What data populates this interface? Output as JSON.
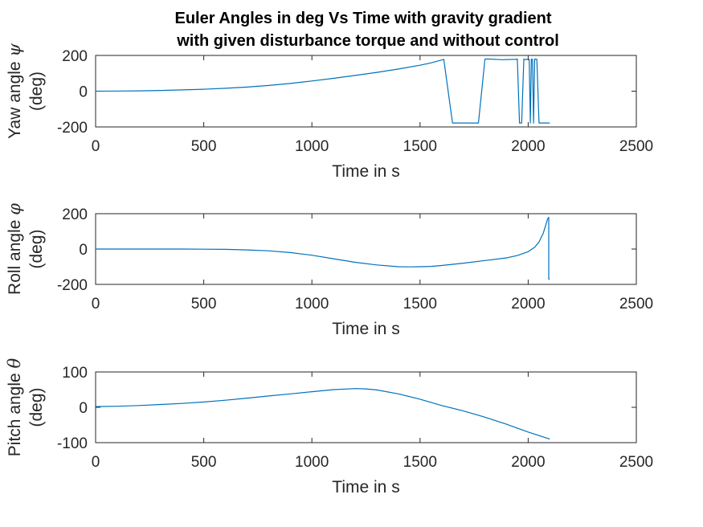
{
  "figure": {
    "title_line1": "Euler Angles in deg Vs Time with gravity gradient",
    "title_line2": "with given disturbance torque and without control"
  },
  "colors": {
    "series": "#0072BD",
    "axes": "#262626"
  },
  "chart_data": [
    {
      "type": "line",
      "xlabel": "Time in s",
      "ylabel_line1": "Yaw angle ",
      "ylabel_symbol": "ψ",
      "ylabel_line2": "(deg)",
      "xlim": [
        0,
        2500
      ],
      "ylim": [
        -200,
        200
      ],
      "xticks": [
        0,
        500,
        1000,
        1500,
        2000,
        2500
      ],
      "yticks": [
        -200,
        0,
        200
      ],
      "xtick_labels": [
        "0",
        "500",
        "1000",
        "1500",
        "2000",
        "2500"
      ],
      "ytick_labels": [
        "-200",
        "0",
        "200"
      ],
      "grid": false,
      "series": [
        {
          "x": [
            0,
            100,
            200,
            300,
            400,
            500,
            600,
            700,
            800,
            900,
            1000,
            1100,
            1200,
            1300,
            1400,
            1500,
            1550,
            1610,
            1650,
            1770,
            1800,
            1820,
            1880,
            1940,
            1950,
            1960,
            1970,
            1980,
            1990,
            2000,
            2005,
            2010,
            2015,
            2020,
            2025,
            2030,
            2040,
            2050,
            2100
          ],
          "y": [
            0,
            1,
            2,
            4,
            7,
            11,
            16,
            23,
            32,
            43,
            57,
            72,
            88,
            105,
            124,
            145,
            158,
            178,
            -178,
            -178,
            180,
            180,
            176,
            178,
            180,
            -178,
            -178,
            180,
            176,
            180,
            177,
            -178,
            180,
            178,
            -178,
            180,
            178,
            -178,
            -178
          ]
        }
      ]
    },
    {
      "type": "line",
      "xlabel": "Time in s",
      "ylabel_line1": "Roll angle ",
      "ylabel_symbol": "φ",
      "ylabel_line2": "(deg)",
      "xlim": [
        0,
        2500
      ],
      "ylim": [
        -200,
        200
      ],
      "xticks": [
        0,
        500,
        1000,
        1500,
        2000,
        2500
      ],
      "yticks": [
        -200,
        0,
        200
      ],
      "xtick_labels": [
        "0",
        "500",
        "1000",
        "1500",
        "2000",
        "2500"
      ],
      "ytick_labels": [
        "-200",
        "0",
        "200"
      ],
      "grid": false,
      "series": [
        {
          "x": [
            0,
            200,
            400,
            600,
            700,
            800,
            900,
            1000,
            1100,
            1200,
            1300,
            1400,
            1450,
            1500,
            1550,
            1600,
            1700,
            1800,
            1900,
            1950,
            2000,
            2030,
            2050,
            2070,
            2080,
            2090,
            2095,
            2095,
            2100
          ],
          "y": [
            0,
            0,
            0,
            -2,
            -5,
            -10,
            -20,
            -35,
            -55,
            -75,
            -90,
            -100,
            -101,
            -100,
            -98,
            -93,
            -80,
            -65,
            -50,
            -37,
            -15,
            10,
            40,
            90,
            130,
            170,
            180,
            -170,
            -170
          ]
        }
      ]
    },
    {
      "type": "line",
      "xlabel": "Time in s",
      "ylabel_line1": "Pitch angle ",
      "ylabel_symbol": "θ",
      "ylabel_line2": "(deg)",
      "xlim": [
        0,
        2500
      ],
      "ylim": [
        -100,
        100
      ],
      "xticks": [
        0,
        500,
        1000,
        1500,
        2000,
        2500
      ],
      "yticks": [
        -100,
        0,
        100
      ],
      "xtick_labels": [
        "0",
        "500",
        "1000",
        "1500",
        "2000",
        "2500"
      ],
      "ytick_labels": [
        "-100",
        "0",
        "100"
      ],
      "grid": false,
      "series": [
        {
          "x": [
            0,
            100,
            200,
            300,
            400,
            500,
            600,
            700,
            800,
            900,
            1000,
            1100,
            1200,
            1250,
            1300,
            1400,
            1500,
            1600,
            1700,
            1800,
            1900,
            2000,
            2100
          ],
          "y": [
            2,
            3,
            5,
            8,
            11,
            15,
            20,
            26,
            32,
            38,
            44,
            50,
            53,
            52,
            49,
            38,
            23,
            5,
            -10,
            -28,
            -48,
            -70,
            -90
          ]
        }
      ]
    }
  ]
}
